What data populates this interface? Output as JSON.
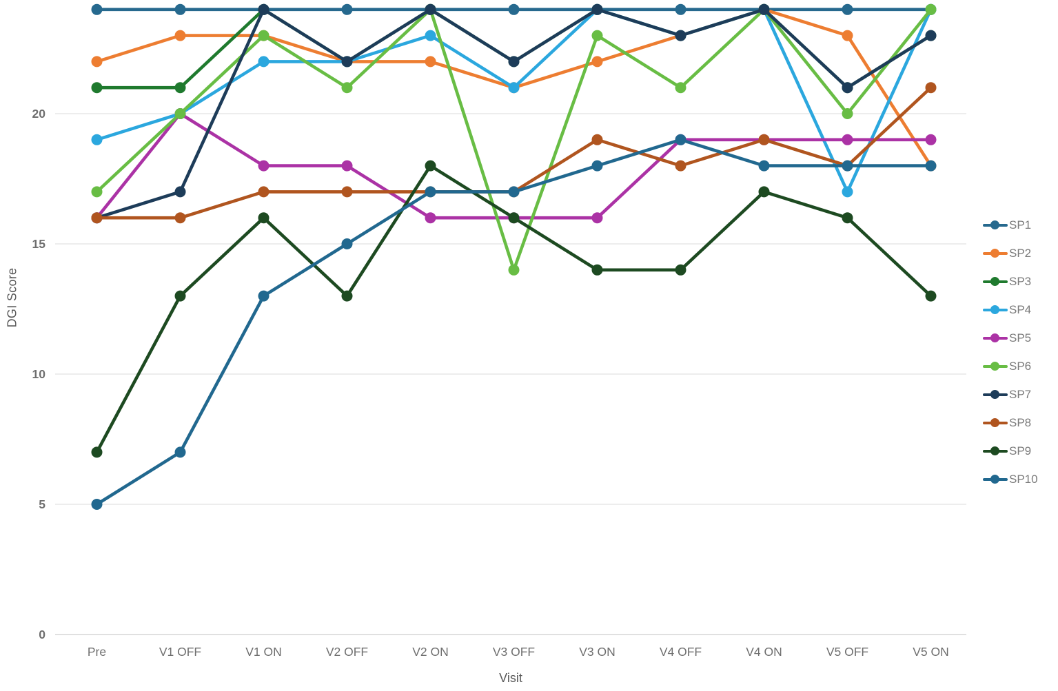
{
  "chart_data": {
    "type": "line",
    "title": "",
    "xlabel": "Visit",
    "ylabel": "DGI Score",
    "categories": [
      "Pre",
      "V1 OFF",
      "V1 ON",
      "V2 OFF",
      "V2 ON",
      "V3 OFF",
      "V3 ON",
      "V4 OFF",
      "V4 ON",
      "V5 OFF",
      "V5 ON"
    ],
    "yticks": [
      0,
      5,
      10,
      15,
      20
    ],
    "ylim": [
      0,
      24.4
    ],
    "grid": "horizontal",
    "legend_position": "right",
    "series": [
      {
        "name": "SP1",
        "color": "#26698E",
        "values": [
          24,
          24,
          24,
          24,
          24,
          24,
          24,
          24,
          24,
          24,
          24
        ]
      },
      {
        "name": "SP2",
        "color": "#ED7D31",
        "values": [
          22,
          23,
          23,
          22,
          22,
          21,
          22,
          23,
          24,
          23,
          18
        ]
      },
      {
        "name": "SP3",
        "color": "#1F7A2E",
        "values": [
          21,
          21,
          24,
          22,
          24,
          22,
          24,
          23,
          24,
          21,
          23
        ]
      },
      {
        "name": "SP4",
        "color": "#2BA7DE",
        "values": [
          19,
          20,
          22,
          22,
          23,
          21,
          24,
          23,
          24,
          17,
          24
        ]
      },
      {
        "name": "SP5",
        "color": "#AB32A5",
        "values": [
          16,
          20,
          18,
          18,
          16,
          16,
          16,
          19,
          19,
          19,
          19
        ]
      },
      {
        "name": "SP6",
        "color": "#68BD44",
        "values": [
          17,
          20,
          23,
          21,
          24,
          14,
          23,
          21,
          24,
          20,
          24
        ]
      },
      {
        "name": "SP7",
        "color": "#1D3C59",
        "values": [
          16,
          17,
          24,
          22,
          24,
          22,
          24,
          23,
          24,
          21,
          23
        ]
      },
      {
        "name": "SP8",
        "color": "#B0551F",
        "values": [
          16,
          16,
          17,
          17,
          17,
          17,
          19,
          18,
          19,
          18,
          21
        ]
      },
      {
        "name": "SP9",
        "color": "#1D4A21",
        "values": [
          7,
          13,
          16,
          13,
          18,
          16,
          14,
          14,
          17,
          16,
          13
        ]
      },
      {
        "name": "SP10",
        "color": "#21688F",
        "values": [
          5,
          7,
          13,
          15,
          17,
          17,
          18,
          19,
          18,
          18,
          18
        ]
      }
    ],
    "style": {
      "gridline_color": "#E7E7E7",
      "axis_line_color": "#D6D6D6",
      "tick_label_color": "#6E6E6E",
      "axis_title_color": "#595959",
      "legend_text_color": "#7A7A7A"
    }
  }
}
